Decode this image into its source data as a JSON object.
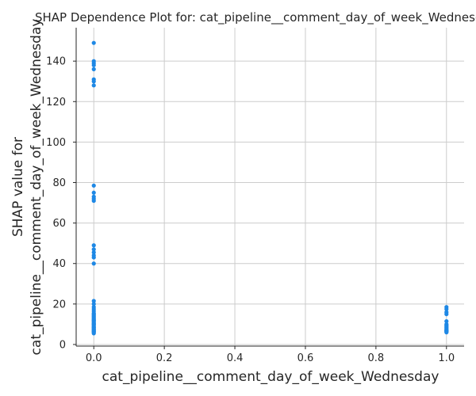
{
  "chart_data": {
    "type": "scatter",
    "title": "SHAP Dependence Plot for: cat_pipeline__comment_day_of_week_Wednesday",
    "xlabel": "cat_pipeline__comment_day_of_week_Wednesday",
    "ylabel_lines": [
      "SHAP value for",
      "cat_pipeline__comment_day_of_week_Wednesday"
    ],
    "xlim": [
      -0.05,
      1.05
    ],
    "ylim": [
      -0.8,
      156.5
    ],
    "x_ticks": [
      0.0,
      0.2,
      0.4,
      0.6,
      0.8,
      1.0
    ],
    "x_tick_labels": [
      "0.0",
      "0.2",
      "0.4",
      "0.6",
      "0.8",
      "1.0"
    ],
    "y_ticks": [
      0,
      20,
      40,
      60,
      80,
      100,
      120,
      140
    ],
    "y_tick_labels": [
      "0",
      "20",
      "40",
      "60",
      "80",
      "100",
      "120",
      "140"
    ],
    "grid": true,
    "point_color": "#1e88e5",
    "grid_color": "#cccccc",
    "axis_color": "#262626",
    "series": [
      {
        "x": [
          0,
          0,
          0,
          0,
          0,
          0,
          0,
          0,
          0,
          0,
          0,
          0,
          0,
          0,
          0,
          0,
          0,
          0,
          0,
          0,
          0,
          0,
          0,
          0,
          0,
          0,
          0,
          0,
          0,
          0,
          0,
          0,
          0,
          0,
          0,
          0,
          0,
          0,
          0,
          0,
          0,
          0,
          0,
          0,
          0,
          0,
          0,
          0,
          0,
          0,
          1,
          1,
          1,
          1,
          1,
          1,
          1,
          1,
          1,
          1,
          1,
          1,
          1,
          1,
          1,
          1
        ],
        "y": [
          149,
          140,
          139,
          138,
          136,
          131,
          130,
          128,
          78.5,
          75,
          73,
          72,
          71,
          49,
          47,
          45.5,
          44,
          43,
          40,
          21.5,
          20,
          18.5,
          17.5,
          16.5,
          15.5,
          15,
          14.5,
          14,
          13.5,
          13,
          12.5,
          12,
          11.5,
          11,
          10.5,
          10,
          9.5,
          9,
          8.5,
          8,
          7.5,
          7,
          6.5,
          6.5,
          6,
          12,
          10,
          8.5,
          7.5,
          5.5,
          18.5,
          17.5,
          16,
          15,
          11.5,
          10,
          9.5,
          9,
          8.5,
          8,
          7.5,
          7,
          7,
          6.5,
          6.5,
          6
        ]
      }
    ]
  }
}
